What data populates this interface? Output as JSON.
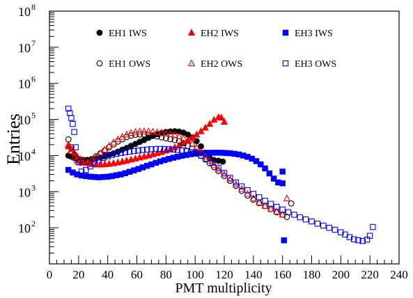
{
  "chart_data": {
    "type": "scatter",
    "title": "",
    "xlabel": "PMT multiplicity",
    "ylabel": "Entries",
    "xlim": [
      0,
      240
    ],
    "ylim": [
      10,
      100000000
    ],
    "yscale": "log",
    "legend_placement": "top-center",
    "x_ticks": [
      0,
      20,
      40,
      60,
      80,
      100,
      120,
      140,
      160,
      180,
      200,
      220,
      240
    ],
    "y_ticks": [
      {
        "exp": 2,
        "base": "10",
        "sup": "2"
      },
      {
        "exp": 3,
        "base": "10",
        "sup": "3"
      },
      {
        "exp": 4,
        "base": "10",
        "sup": "4"
      },
      {
        "exp": 5,
        "base": "10",
        "sup": "5"
      },
      {
        "exp": 6,
        "base": "10",
        "sup": "6"
      },
      {
        "exp": 7,
        "base": "10",
        "sup": "7"
      },
      {
        "exp": 8,
        "base": "10",
        "sup": "8"
      }
    ],
    "series": [
      {
        "name": "EH1 IWS",
        "color": "#000000",
        "marker": "circle",
        "filled": true,
        "x": [
          13,
          15,
          17,
          19,
          21,
          23,
          26,
          29,
          32,
          35,
          38,
          41,
          44,
          47,
          50,
          53,
          56,
          59,
          62,
          65,
          68,
          71,
          74,
          77,
          80,
          83,
          86,
          89,
          92,
          95,
          98,
          101,
          104,
          107,
          110,
          113,
          116,
          119
        ],
        "y": [
          10000,
          9300,
          8600,
          8100,
          7800,
          7600,
          7600,
          7900,
          8200,
          8800,
          9500,
          10500,
          11500,
          12800,
          14500,
          16200,
          18500,
          21000,
          24000,
          27000,
          31000,
          35000,
          39000,
          42000,
          45000,
          46500,
          47000,
          46000,
          43000,
          38000,
          32000,
          25000,
          18000,
          12000,
          8500,
          7500,
          7200,
          6800
        ]
      },
      {
        "name": "EH2 IWS",
        "color": "#ff0000",
        "marker": "triangle",
        "filled": true,
        "x": [
          13,
          15,
          17,
          19,
          21,
          23,
          26,
          29,
          32,
          35,
          38,
          41,
          44,
          47,
          50,
          53,
          56,
          59,
          62,
          65,
          68,
          71,
          74,
          77,
          80,
          83,
          86,
          89,
          92,
          95,
          98,
          101,
          104,
          107,
          110,
          113,
          116,
          118,
          120
        ],
        "y": [
          18000,
          15000,
          12000,
          9500,
          8000,
          7000,
          6200,
          5800,
          5600,
          5600,
          5700,
          5900,
          6100,
          6400,
          6800,
          7200,
          7700,
          8200,
          8800,
          9400,
          10000,
          10800,
          11600,
          12500,
          13700,
          15000,
          16800,
          19000,
          22000,
          26000,
          31000,
          38000,
          47000,
          59000,
          75000,
          97000,
          115000,
          112000,
          86000
        ]
      },
      {
        "name": "EH3 IWS",
        "color": "#0000ff",
        "marker": "square",
        "filled": true,
        "x": [
          13,
          16,
          19,
          22,
          25,
          28,
          31,
          34,
          37,
          40,
          43,
          46,
          49,
          52,
          55,
          58,
          61,
          64,
          67,
          70,
          73,
          76,
          79,
          82,
          85,
          88,
          91,
          94,
          97,
          100,
          103,
          106,
          109,
          112,
          115,
          118,
          121,
          124,
          127,
          130,
          133,
          136,
          139,
          142,
          145,
          148,
          151,
          154,
          157,
          160,
          160,
          161
        ],
        "y": [
          4000,
          3400,
          3000,
          2800,
          2700,
          2600,
          2550,
          2500,
          2550,
          2600,
          2700,
          2850,
          3000,
          3250,
          3550,
          3900,
          4250,
          4700,
          5200,
          5700,
          6300,
          6900,
          7500,
          8100,
          8700,
          9300,
          9900,
          10400,
          10900,
          11300,
          11600,
          11800,
          11900,
          11950,
          12000,
          11950,
          11800,
          11600,
          11200,
          10700,
          10000,
          9200,
          8200,
          7000,
          5700,
          4400,
          3200,
          2300,
          1800,
          1700,
          3600,
          45
        ]
      },
      {
        "name": "EH1 OWS",
        "color": "#000000",
        "marker": "circle",
        "filled": false,
        "x": [
          13,
          15,
          17,
          19,
          21,
          23,
          26,
          29,
          32,
          35,
          38,
          41,
          44,
          47,
          50,
          53,
          56,
          59,
          62,
          65,
          68,
          71,
          74,
          77,
          80,
          83,
          86,
          89,
          92,
          95,
          98,
          101,
          104,
          107,
          110,
          113,
          116,
          120,
          124,
          128,
          132,
          136,
          140,
          144,
          148,
          152,
          156,
          160,
          163,
          166
        ],
        "y": [
          28000,
          17000,
          10500,
          8000,
          7000,
          6800,
          7000,
          8000,
          9500,
          11500,
          14000,
          17000,
          20500,
          24500,
          28500,
          32500,
          35500,
          37500,
          38500,
          38500,
          37500,
          36000,
          34000,
          32000,
          30000,
          28500,
          27000,
          25000,
          22000,
          18500,
          15500,
          12500,
          9800,
          7800,
          6100,
          4800,
          3700,
          2700,
          2000,
          1450,
          1050,
          780,
          600,
          480,
          400,
          330,
          270,
          230,
          200,
          470
        ]
      },
      {
        "name": "EH2 OWS",
        "color": "#ff0000",
        "marker": "triangle",
        "filled": false,
        "x": [
          13,
          15,
          17,
          19,
          21,
          23,
          26,
          29,
          32,
          35,
          38,
          41,
          44,
          47,
          50,
          53,
          56,
          59,
          62,
          65,
          68,
          71,
          74,
          77,
          80,
          83,
          86,
          89,
          92,
          95,
          98,
          101,
          104,
          107,
          110,
          113,
          116,
          120,
          124,
          128,
          132,
          136,
          140,
          144,
          148,
          152,
          156,
          160,
          163
        ],
        "y": [
          20000,
          13000,
          9000,
          7300,
          6500,
          6300,
          6500,
          7500,
          9000,
          11500,
          14500,
          18500,
          23000,
          28000,
          33000,
          38000,
          42000,
          45000,
          46500,
          47000,
          46500,
          45500,
          44000,
          42500,
          41000,
          39000,
          37000,
          34000,
          30000,
          25500,
          21000,
          16500,
          12500,
          9500,
          7200,
          5400,
          4100,
          3000,
          2200,
          1600,
          1180,
          870,
          650,
          500,
          400,
          330,
          280,
          230,
          650
        ]
      },
      {
        "name": "EH3 OWS",
        "color": "#0000ff",
        "marker": "square",
        "filled": false,
        "x": [
          13,
          14,
          15,
          16,
          17,
          18,
          20,
          22,
          25,
          28,
          31,
          34,
          37,
          40,
          43,
          46,
          49,
          52,
          55,
          58,
          61,
          64,
          67,
          70,
          73,
          76,
          79,
          82,
          85,
          88,
          91,
          94,
          97,
          100,
          104,
          108,
          112,
          116,
          120,
          124,
          128,
          132,
          136,
          140,
          144,
          148,
          152,
          156,
          160,
          164,
          168,
          172,
          176,
          180,
          184,
          188,
          192,
          196,
          200,
          203,
          206,
          209,
          212,
          215,
          218,
          220,
          222
        ],
        "y": [
          200000,
          150000,
          110000,
          75000,
          45000,
          17000,
          6500,
          3600,
          4000,
          5000,
          6200,
          7400,
          8600,
          9600,
          10500,
          11200,
          11800,
          12300,
          12800,
          13300,
          13800,
          14300,
          14700,
          15000,
          15200,
          15300,
          15200,
          15000,
          14700,
          14300,
          13800,
          13200,
          12500,
          11500,
          10000,
          8200,
          6300,
          4600,
          3300,
          2400,
          1800,
          1400,
          1100,
          870,
          700,
          560,
          460,
          380,
          320,
          270,
          230,
          195,
          170,
          150,
          130,
          115,
          100,
          88,
          75,
          65,
          55,
          48,
          45,
          43,
          47,
          60,
          105
        ]
      }
    ]
  }
}
